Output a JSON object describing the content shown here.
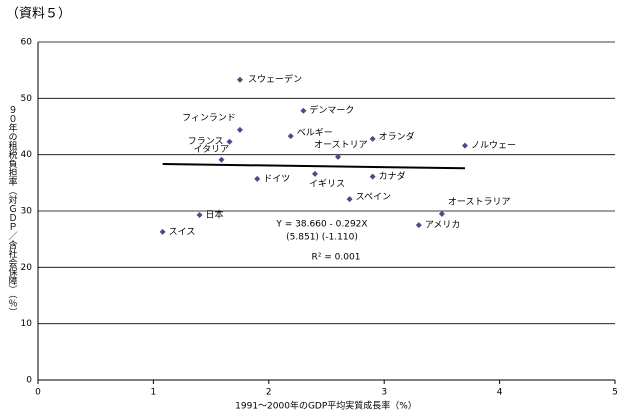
{
  "chart_data": {
    "type": "scatter",
    "title": "（資料５）",
    "x_label": "1991～2000年のGDP平均実質成長率（%）",
    "y_label": "９０年の租税負担率（対ＧＤＰ／含社会保障）（％）",
    "xlim": [
      0,
      5
    ],
    "xticks": [
      0,
      1,
      2,
      3,
      4,
      5
    ],
    "ylim": [
      0,
      60
    ],
    "yticks": [
      0,
      10,
      20,
      30,
      40,
      50,
      60
    ],
    "grid": true,
    "color": "#4a4a8c",
    "points": [
      {
        "name": "スウェーデン",
        "x": 1.75,
        "y": 53.3
      },
      {
        "name": "デンマーク",
        "x": 2.3,
        "y": 47.8
      },
      {
        "name": "フィンランド",
        "x": 1.75,
        "y": 44.4
      },
      {
        "name": "フランス",
        "x": 1.66,
        "y": 42.3
      },
      {
        "name": "ベルギー",
        "x": 2.19,
        "y": 43.3
      },
      {
        "name": "オランダ",
        "x": 2.9,
        "y": 42.8
      },
      {
        "name": "ノルウェー",
        "x": 3.7,
        "y": 41.6
      },
      {
        "name": "オーストリア",
        "x": 2.6,
        "y": 39.6
      },
      {
        "name": "イタリア",
        "x": 1.59,
        "y": 39.1
      },
      {
        "name": "ドイツ",
        "x": 1.9,
        "y": 35.7
      },
      {
        "name": "イギリス",
        "x": 2.4,
        "y": 36.6
      },
      {
        "name": "カナダ",
        "x": 2.9,
        "y": 36.1
      },
      {
        "name": "スペイン",
        "x": 2.7,
        "y": 32.1
      },
      {
        "name": "オーストラリア",
        "x": 3.5,
        "y": 29.5
      },
      {
        "name": "アメリカ",
        "x": 3.3,
        "y": 27.5
      },
      {
        "name": "日本",
        "x": 1.4,
        "y": 29.3
      },
      {
        "name": "スイス",
        "x": 1.08,
        "y": 26.3
      }
    ],
    "trendline": {
      "x": [
        1.08,
        3.7
      ],
      "y": [
        38.34,
        37.58
      ],
      "color": "#000000"
    },
    "annotations": [
      "Y = 38.660 - 0.292X",
      "(5.851)  (-1.110)",
      "R² = 0.001"
    ]
  }
}
